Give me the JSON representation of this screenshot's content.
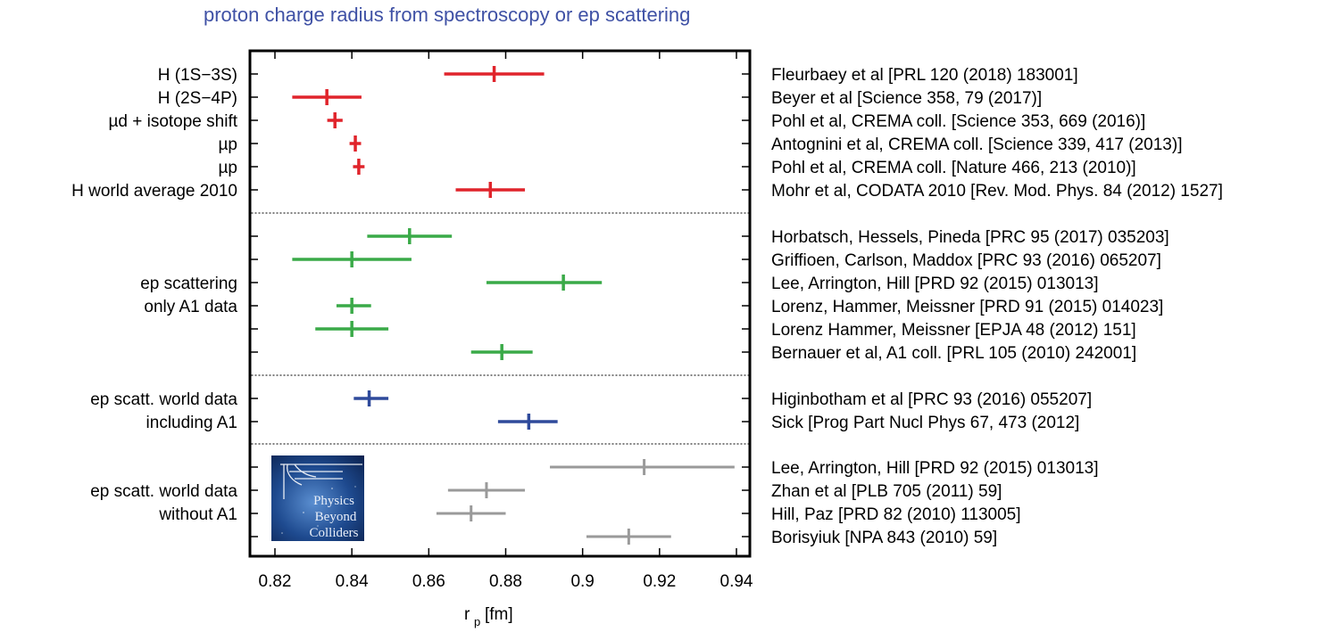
{
  "page": {
    "title": "proton charge radius from spectroscopy or ep scattering"
  },
  "colors": {
    "title": "#3f51a5",
    "red": "#e0242b",
    "green": "#3aaa48",
    "blue": "#2f4a9b",
    "gray": "#9a9a9a"
  },
  "logo": {
    "lines": [
      "Physics",
      "Beyond",
      "Colliders"
    ],
    "icon": "physics-beyond-colliders-logo"
  },
  "chart_data": {
    "type": "scatter",
    "title": "proton charge radius from spectroscopy or ep scattering",
    "xlabel_main": "r",
    "xlabel_sub": "p",
    "xlabel_unit": "[fm]",
    "xlim": [
      0.815,
      0.945
    ],
    "xticks": [
      0.82,
      0.84,
      0.86,
      0.88,
      0.9,
      0.92,
      0.94
    ],
    "xtick_labels": [
      "0.82",
      "0.84",
      "0.86",
      "0.88",
      "0.9",
      "0.92",
      "0.94"
    ],
    "grid": false,
    "groups": [
      {
        "color_key": "red",
        "entries": [
          {
            "label": "H (1S−3S)",
            "ref": "Fleurbaey et al [PRL 120 (2018) 183001]",
            "value": 0.877,
            "lo": 0.864,
            "hi": 0.89
          },
          {
            "label": "H (2S−4P)",
            "ref": "Beyer et al [Science 358, 79 (2017)]",
            "value": 0.8335,
            "lo": 0.8245,
            "hi": 0.8425
          },
          {
            "label": "µd + isotope shift",
            "ref": "Pohl et al, CREMA coll. [Science 353, 669 (2016)]",
            "value": 0.8356,
            "lo": 0.8336,
            "hi": 0.8376
          },
          {
            "label": "µp",
            "ref": "Antognini et al, CREMA coll. [Science 339, 417 (2013)]",
            "value": 0.8409,
            "lo": 0.8394,
            "hi": 0.8424
          },
          {
            "label": "µp",
            "ref": "Pohl et al, CREMA coll. [Nature 466, 213 (2010)]",
            "value": 0.8418,
            "lo": 0.8403,
            "hi": 0.8433
          },
          {
            "label": "H world average 2010",
            "ref": "Mohr et al, CODATA 2010 [Rev. Mod. Phys. 84 (2012) 1527]",
            "value": 0.876,
            "lo": 0.867,
            "hi": 0.885
          }
        ]
      },
      {
        "color_key": "green",
        "entries": [
          {
            "label": "",
            "ref": "Horbatsch, Hessels, Pineda [PRC 95 (2017) 035203]",
            "value": 0.855,
            "lo": 0.844,
            "hi": 0.866
          },
          {
            "label": "",
            "ref": "Griffioen, Carlson, Maddox [PRC 93 (2016) 065207]",
            "value": 0.84,
            "lo": 0.8245,
            "hi": 0.8555
          },
          {
            "label": "ep scattering",
            "ref": "Lee, Arrington, Hill [PRD 92 (2015) 013013]",
            "value": 0.895,
            "lo": 0.875,
            "hi": 0.905
          },
          {
            "label": "only A1 data",
            "ref": "Lorenz, Hammer, Meissner [PRD 91 (2015) 014023]",
            "value": 0.84,
            "lo": 0.836,
            "hi": 0.845
          },
          {
            "label": "",
            "ref": "Lorenz Hammer, Meissner [EPJA 48 (2012) 151]",
            "value": 0.84,
            "lo": 0.8305,
            "hi": 0.8495
          },
          {
            "label": "",
            "ref": "Bernauer et al, A1 coll. [PRL 105 (2010) 242001]",
            "value": 0.879,
            "lo": 0.871,
            "hi": 0.887
          }
        ]
      },
      {
        "color_key": "blue",
        "entries": [
          {
            "label": "ep scatt. world data",
            "ref": "Higinbotham et al [PRC 93 (2016) 055207]",
            "value": 0.8445,
            "lo": 0.8405,
            "hi": 0.8495
          },
          {
            "label": "including A1",
            "ref": "Sick [Prog Part Nucl Phys 67, 473 (2012]",
            "value": 0.886,
            "lo": 0.878,
            "hi": 0.8935
          }
        ]
      },
      {
        "color_key": "gray",
        "entries": [
          {
            "label": "",
            "ref": "Lee, Arrington, Hill [PRD 92 (2015) 013013]",
            "value": 0.916,
            "lo": 0.8915,
            "hi": 0.9395
          },
          {
            "label": "ep scatt. world data",
            "ref": "Zhan et al [PLB 705 (2011) 59]",
            "value": 0.875,
            "lo": 0.865,
            "hi": 0.885
          },
          {
            "label": "without A1",
            "ref": "Hill, Paz [PRD 82 (2010) 113005]",
            "value": 0.871,
            "lo": 0.862,
            "hi": 0.88
          },
          {
            "label": "",
            "ref": "Borisyiuk [NPA 843 (2010) 59]",
            "value": 0.912,
            "lo": 0.901,
            "hi": 0.923
          }
        ]
      }
    ]
  }
}
